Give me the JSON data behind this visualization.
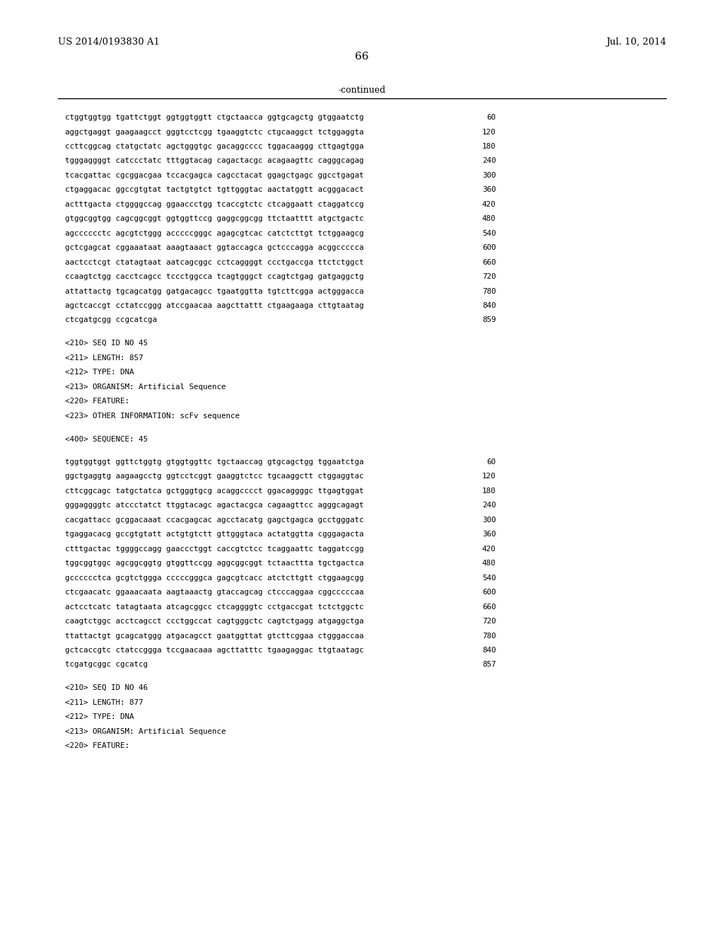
{
  "header_left": "US 2014/0193830 A1",
  "header_right": "Jul. 10, 2014",
  "page_number": "66",
  "continued_label": "-continued",
  "background_color": "#ffffff",
  "text_color": "#000000",
  "lines": [
    {
      "text": "ctggtggtgg tgattctggt ggtggtggtt ctgctaacca ggtgcagctg gtggaatctg",
      "num": "60",
      "type": "seq"
    },
    {
      "text": "aggctgaggt gaagaagcct gggtcctcgg tgaaggtctc ctgcaaggct tctggaggta",
      "num": "120",
      "type": "seq"
    },
    {
      "text": "ccttcggcag ctatgctatc agctgggtgc gacaggcccc tggacaaggg cttgagtgga",
      "num": "180",
      "type": "seq"
    },
    {
      "text": "tgggaggggt catccctatc tttggtacag cagactacgc acagaagttc cagggcagag",
      "num": "240",
      "type": "seq"
    },
    {
      "text": "tcacgattac cgcggacgaa tccacgagca cagcctacat ggagctgagc ggcctgagat",
      "num": "300",
      "type": "seq"
    },
    {
      "text": "ctgaggacac ggccgtgtat tactgtgtct tgttgggtac aactatggtt acgggacact",
      "num": "360",
      "type": "seq"
    },
    {
      "text": "actttgacta ctggggccag ggaaccctgg tcaccgtctc ctcaggaatt ctaggatccg",
      "num": "420",
      "type": "seq"
    },
    {
      "text": "gtggcggtgg cagcggcggt ggtggttccg gaggcggcgg ttctaatttt atgctgactc",
      "num": "480",
      "type": "seq"
    },
    {
      "text": "agcccccctc agcgtctggg acccccgggc agagcgtcac catctcttgt tctggaagcg",
      "num": "540",
      "type": "seq"
    },
    {
      "text": "gctcgagcat cggaaataat aaagtaaact ggtaccagca gctcccagga acggccccca",
      "num": "600",
      "type": "seq"
    },
    {
      "text": "aactcctcgt ctatagtaat aatcagcggc cctcaggggt ccctgaccga ttctctggct",
      "num": "660",
      "type": "seq"
    },
    {
      "text": "ccaagtctgg cacctcagcc tccctggcca tcagtgggct ccagtctgag gatgaggctg",
      "num": "720",
      "type": "seq"
    },
    {
      "text": "attattactg tgcagcatgg gatgacagcc tgaatggtta tgtcttcgga actgggacca",
      "num": "780",
      "type": "seq"
    },
    {
      "text": "agctcaccgt cctatccggg atccgaacaa aagcttattt ctgaagaaga cttgtaatag",
      "num": "840",
      "type": "seq"
    },
    {
      "text": "ctcgatgcgg ccgcatcga",
      "num": "859",
      "type": "seq"
    },
    {
      "text": "",
      "type": "blank"
    },
    {
      "text": "<210> SEQ ID NO 45",
      "type": "meta"
    },
    {
      "text": "<211> LENGTH: 857",
      "type": "meta"
    },
    {
      "text": "<212> TYPE: DNA",
      "type": "meta"
    },
    {
      "text": "<213> ORGANISM: Artificial Sequence",
      "type": "meta"
    },
    {
      "text": "<220> FEATURE:",
      "type": "meta"
    },
    {
      "text": "<223> OTHER INFORMATION: scFv sequence",
      "type": "meta"
    },
    {
      "text": "",
      "type": "blank"
    },
    {
      "text": "<400> SEQUENCE: 45",
      "type": "meta"
    },
    {
      "text": "",
      "type": "blank"
    },
    {
      "text": "tggtggtggt ggttctggtg gtggtggttc tgctaaccag gtgcagctgg tggaatctga",
      "num": "60",
      "type": "seq"
    },
    {
      "text": "ggctgaggtg aagaagcctg ggtcctcggt gaaggtctcc tgcaaggctt ctggaggtac",
      "num": "120",
      "type": "seq"
    },
    {
      "text": "cttcggcagc tatgctatca gctgggtgcg acaggcccct ggacaggggc ttgagtggat",
      "num": "180",
      "type": "seq"
    },
    {
      "text": "gggaggggtc atccctatct ttggtacagc agactacgca cagaagttcc agggcagagt",
      "num": "240",
      "type": "seq"
    },
    {
      "text": "cacgattacc gcggacaaat ccacgagcac agcctacatg gagctgagca gcctgggatc",
      "num": "300",
      "type": "seq"
    },
    {
      "text": "tgaggacacg gccgtgtatt actgtgtctt gttgggtaca actatggtta cgggagacta",
      "num": "360",
      "type": "seq"
    },
    {
      "text": "ctttgactac tggggccagg gaaccctggt caccgtctcc tcaggaattc taggatccgg",
      "num": "420",
      "type": "seq"
    },
    {
      "text": "tggcggtggc agcggcggtg gtggttccgg aggcggcggt tctaacttta tgctgactca",
      "num": "480",
      "type": "seq"
    },
    {
      "text": "gcccccctca gcgtctggga cccccgggca gagcgtcacc atctcttgtt ctggaagcgg",
      "num": "540",
      "type": "seq"
    },
    {
      "text": "ctcgaacatc ggaaacaata aagtaaactg gtaccagcag ctcccaggaa cggcccccaa",
      "num": "600",
      "type": "seq"
    },
    {
      "text": "actcctcatc tatagtaata atcagcggcc ctcaggggtc cctgaccgat tctctggctc",
      "num": "660",
      "type": "seq"
    },
    {
      "text": "caagtctggc acctcagcct ccctggccat cagtgggctc cagtctgagg atgaggctga",
      "num": "720",
      "type": "seq"
    },
    {
      "text": "ttattactgt gcagcatggg atgacagcct gaatggttat gtcttcggaa ctgggaccaa",
      "num": "780",
      "type": "seq"
    },
    {
      "text": "gctcaccgtc ctatccggga tccgaacaaa agcttatttc tgaagaggac ttgtaatagc",
      "num": "840",
      "type": "seq"
    },
    {
      "text": "tcgatgcggc cgcatcg",
      "num": "857",
      "type": "seq"
    },
    {
      "text": "",
      "type": "blank"
    },
    {
      "text": "<210> SEQ ID NO 46",
      "type": "meta"
    },
    {
      "text": "<211> LENGTH: 877",
      "type": "meta"
    },
    {
      "text": "<212> TYPE: DNA",
      "type": "meta"
    },
    {
      "text": "<213> ORGANISM: Artificial Sequence",
      "type": "meta"
    },
    {
      "text": "<220> FEATURE:",
      "type": "meta"
    }
  ]
}
